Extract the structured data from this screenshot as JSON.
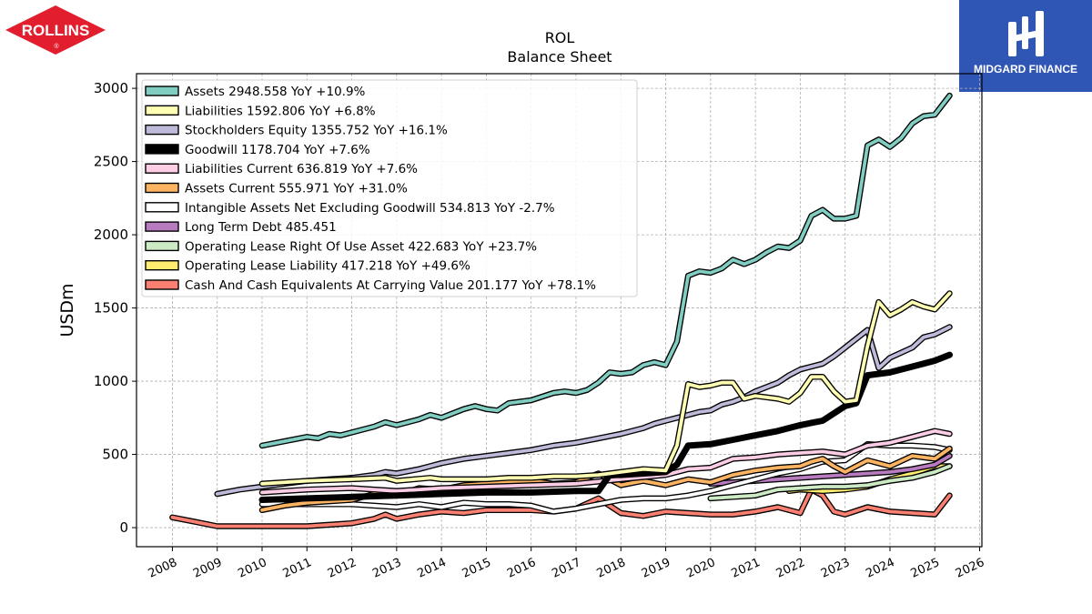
{
  "logos": {
    "left_text": "ROLLINS",
    "left_mark": "®",
    "left_color": "#e11d2e",
    "right_text": "MIDGARD FINANCE",
    "right_color": "#2f55b5"
  },
  "chart_data": {
    "type": "line",
    "title": "ROL",
    "subtitle": "Balance  Sheet",
    "ylabel": "USDm",
    "xlabel": "",
    "xlim": [
      2007.2,
      2026.05
    ],
    "ylim": [
      -130,
      3100
    ],
    "yticks": [
      0,
      500,
      1000,
      1500,
      2000,
      2500,
      3000
    ],
    "xticks": [
      2008,
      2009,
      2010,
      2011,
      2012,
      2013,
      2014,
      2015,
      2016,
      2017,
      2018,
      2019,
      2020,
      2021,
      2022,
      2023,
      2024,
      2025,
      2026
    ],
    "grid": true,
    "legend_position": "top-left",
    "series": [
      {
        "name": "Assets  2948.558 YoY +10.9%",
        "color": "#80cdc1",
        "x": [
          2010,
          2010.5,
          2011,
          2011.25,
          2011.5,
          2011.75,
          2012,
          2012.5,
          2012.75,
          2013,
          2013.5,
          2013.75,
          2014,
          2014.5,
          2014.75,
          2015,
          2015.25,
          2015.5,
          2015.75,
          2016,
          2016.5,
          2016.75,
          2017,
          2017.25,
          2017.5,
          2017.75,
          2018,
          2018.25,
          2018.5,
          2018.75,
          2019,
          2019.25,
          2019.5,
          2019.75,
          2020,
          2020.25,
          2020.5,
          2020.75,
          2021,
          2021.25,
          2021.5,
          2021.75,
          2022,
          2022.25,
          2022.5,
          2022.75,
          2023,
          2023.25,
          2023.5,
          2023.75,
          2024,
          2024.25,
          2024.5,
          2024.75,
          2025,
          2025.33
        ],
        "y": [
          560,
          590,
          620,
          610,
          640,
          630,
          650,
          690,
          720,
          700,
          740,
          770,
          750,
          810,
          830,
          810,
          800,
          850,
          860,
          870,
          920,
          930,
          920,
          940,
          990,
          1060,
          1050,
          1060,
          1110,
          1130,
          1110,
          1270,
          1720,
          1750,
          1740,
          1770,
          1830,
          1800,
          1830,
          1880,
          1920,
          1910,
          1960,
          2130,
          2170,
          2110,
          2110,
          2130,
          2610,
          2650,
          2600,
          2660,
          2760,
          2810,
          2820,
          2950
        ]
      },
      {
        "name": "Liabilities  1592.806 YoY +6.8%",
        "color": "#ffffb3",
        "x": [
          2010,
          2011,
          2012,
          2012.75,
          2013,
          2013.75,
          2014,
          2014.5,
          2015,
          2015.5,
          2016,
          2016.5,
          2017,
          2017.5,
          2018,
          2018.5,
          2019,
          2019.25,
          2019.5,
          2019.75,
          2020,
          2020.25,
          2020.5,
          2020.75,
          2021,
          2021.5,
          2021.75,
          2022,
          2022.25,
          2022.5,
          2022.75,
          2023,
          2023.25,
          2023.5,
          2023.75,
          2024,
          2024.25,
          2024.5,
          2024.75,
          2025,
          2025.33
        ],
        "y": [
          300,
          320,
          330,
          340,
          320,
          340,
          330,
          330,
          330,
          340,
          340,
          350,
          350,
          360,
          380,
          400,
          390,
          560,
          980,
          960,
          970,
          990,
          990,
          880,
          900,
          880,
          860,
          920,
          1030,
          1030,
          930,
          860,
          870,
          1240,
          1540,
          1450,
          1490,
          1540,
          1510,
          1490,
          1600
        ]
      },
      {
        "name": "Stockholders Equity  1355.752 YoY +16.1%",
        "color": "#bebada",
        "x": [
          2009,
          2009.5,
          2010,
          2010.5,
          2011,
          2011.5,
          2012,
          2012.5,
          2012.75,
          2013,
          2013.5,
          2013.75,
          2014,
          2014.5,
          2015,
          2015.5,
          2016,
          2016.5,
          2017,
          2017.5,
          2018,
          2018.5,
          2018.75,
          2019,
          2019.5,
          2019.75,
          2020,
          2020.25,
          2020.5,
          2020.75,
          2021,
          2021.5,
          2021.75,
          2022,
          2022.5,
          2022.75,
          2023,
          2023.5,
          2023.75,
          2024,
          2024.5,
          2024.75,
          2025,
          2025.33
        ],
        "y": [
          230,
          260,
          280,
          300,
          320,
          330,
          340,
          360,
          380,
          370,
          400,
          420,
          440,
          470,
          490,
          510,
          530,
          560,
          580,
          610,
          640,
          680,
          710,
          730,
          770,
          790,
          800,
          840,
          860,
          890,
          930,
          990,
          1040,
          1080,
          1120,
          1170,
          1230,
          1350,
          1090,
          1160,
          1230,
          1300,
          1320,
          1370
        ]
      },
      {
        "name": "Goodwill  1178.704 YoY +7.6%",
        "color": "#000000",
        "x": [
          2010,
          2011,
          2012,
          2013,
          2014,
          2015,
          2016,
          2017,
          2017.5,
          2017.75,
          2018,
          2018.5,
          2019,
          2019.25,
          2019.5,
          2020,
          2020.5,
          2021,
          2021.5,
          2022,
          2022.5,
          2023,
          2023.25,
          2023.5,
          2024,
          2024.5,
          2025,
          2025.33
        ],
        "y": [
          190,
          200,
          210,
          220,
          230,
          240,
          240,
          250,
          250,
          360,
          360,
          370,
          380,
          430,
          560,
          570,
          600,
          630,
          660,
          700,
          730,
          830,
          850,
          1040,
          1060,
          1100,
          1140,
          1180
        ]
      },
      {
        "name": "Liabilities Current  636.819 YoY +7.6%",
        "color": "#fccde5",
        "x": [
          2010,
          2011,
          2012,
          2013,
          2014,
          2015,
          2016,
          2017,
          2018,
          2019,
          2019.5,
          2020,
          2020.5,
          2021,
          2021.5,
          2022,
          2022.5,
          2023,
          2023.5,
          2024,
          2024.5,
          2025,
          2025.33
        ],
        "y": [
          240,
          260,
          270,
          250,
          270,
          280,
          290,
          300,
          330,
          360,
          400,
          410,
          470,
          480,
          500,
          510,
          520,
          500,
          560,
          580,
          620,
          660,
          640
        ]
      },
      {
        "name": "Assets Current  555.971 YoY +31.0%",
        "color": "#fdb462",
        "x": [
          2010,
          2010.5,
          2011,
          2011.5,
          2012,
          2012.5,
          2012.75,
          2013,
          2013.5,
          2014,
          2014.5,
          2015,
          2015.5,
          2016,
          2016.5,
          2017,
          2017.5,
          2018,
          2018.5,
          2019,
          2019.5,
          2020,
          2020.5,
          2021,
          2021.5,
          2022,
          2022.25,
          2022.5,
          2022.75,
          2023,
          2023.5,
          2024,
          2024.5,
          2025,
          2025.33
        ],
        "y": [
          120,
          150,
          170,
          180,
          190,
          230,
          250,
          220,
          270,
          260,
          290,
          300,
          310,
          320,
          300,
          310,
          370,
          290,
          320,
          290,
          330,
          310,
          360,
          390,
          410,
          420,
          450,
          470,
          420,
          380,
          460,
          420,
          490,
          470,
          540
        ]
      },
      {
        "name": "Intangible Assets Net Excluding Goodwill  534.813 YoY -2.7%",
        "color": "#ffffff",
        "x": [
          2010,
          2011,
          2012,
          2013,
          2013.5,
          2014,
          2014.5,
          2015,
          2015.5,
          2016,
          2016.5,
          2017,
          2017.5,
          2018,
          2018.5,
          2019,
          2019.5,
          2020,
          2020.5,
          2021,
          2021.5,
          2022,
          2022.5,
          2023,
          2023.5,
          2024,
          2024.5,
          2025,
          2025.33
        ],
        "y": [
          160,
          160,
          160,
          140,
          160,
          140,
          170,
          160,
          160,
          150,
          110,
          130,
          160,
          190,
          200,
          200,
          220,
          250,
          290,
          330,
          370,
          400,
          450,
          460,
          570,
          560,
          560,
          550,
          530
        ]
      },
      {
        "name": "Long Term Debt  485.451",
        "color": "#b97bbf",
        "x": [
          2020,
          2021,
          2022,
          2023,
          2024,
          2024.5,
          2025,
          2025.33
        ],
        "y": [
          300,
          320,
          340,
          360,
          380,
          400,
          430,
          490
        ]
      },
      {
        "name": "Operating Lease Right Of Use Asset  422.683 YoY +23.7%",
        "color": "#ccebc5",
        "x": [
          2020,
          2020.5,
          2021,
          2021.5,
          2022,
          2022.5,
          2023,
          2023.5,
          2024,
          2024.5,
          2025,
          2025.33
        ],
        "y": [
          200,
          210,
          220,
          260,
          270,
          280,
          280,
          290,
          320,
          340,
          380,
          420
        ]
      },
      {
        "name": "Operating Lease Liability  417.218 YoY +49.6%",
        "color": "#ffed6f",
        "x": [
          2021.75,
          2022,
          2022.5,
          2023,
          2023.5,
          2024,
          2024.5,
          2025,
          2025.33
        ],
        "y": [
          250,
          260,
          250,
          260,
          280,
          330,
          370,
          420,
          420
        ]
      },
      {
        "name": "Cash And Cash Equivalents At Carrying Value  201.177 YoY +78.1%",
        "color": "#fb8072",
        "x": [
          2008,
          2008.5,
          2009,
          2009.5,
          2010,
          2010.5,
          2011,
          2011.5,
          2012,
          2012.5,
          2012.75,
          2013,
          2013.5,
          2014,
          2014.5,
          2015,
          2015.5,
          2016,
          2016.5,
          2017,
          2017.5,
          2018,
          2018.5,
          2019,
          2019.5,
          2020,
          2020.5,
          2021,
          2021.5,
          2022,
          2022.25,
          2022.5,
          2022.75,
          2023,
          2023.5,
          2024,
          2024.5,
          2025,
          2025.33
        ],
        "y": [
          70,
          40,
          10,
          10,
          10,
          10,
          10,
          20,
          30,
          60,
          90,
          60,
          90,
          110,
          100,
          120,
          120,
          120,
          110,
          130,
          200,
          100,
          80,
          110,
          100,
          90,
          90,
          110,
          140,
          100,
          260,
          220,
          110,
          90,
          140,
          110,
          100,
          90,
          220
        ]
      }
    ]
  }
}
